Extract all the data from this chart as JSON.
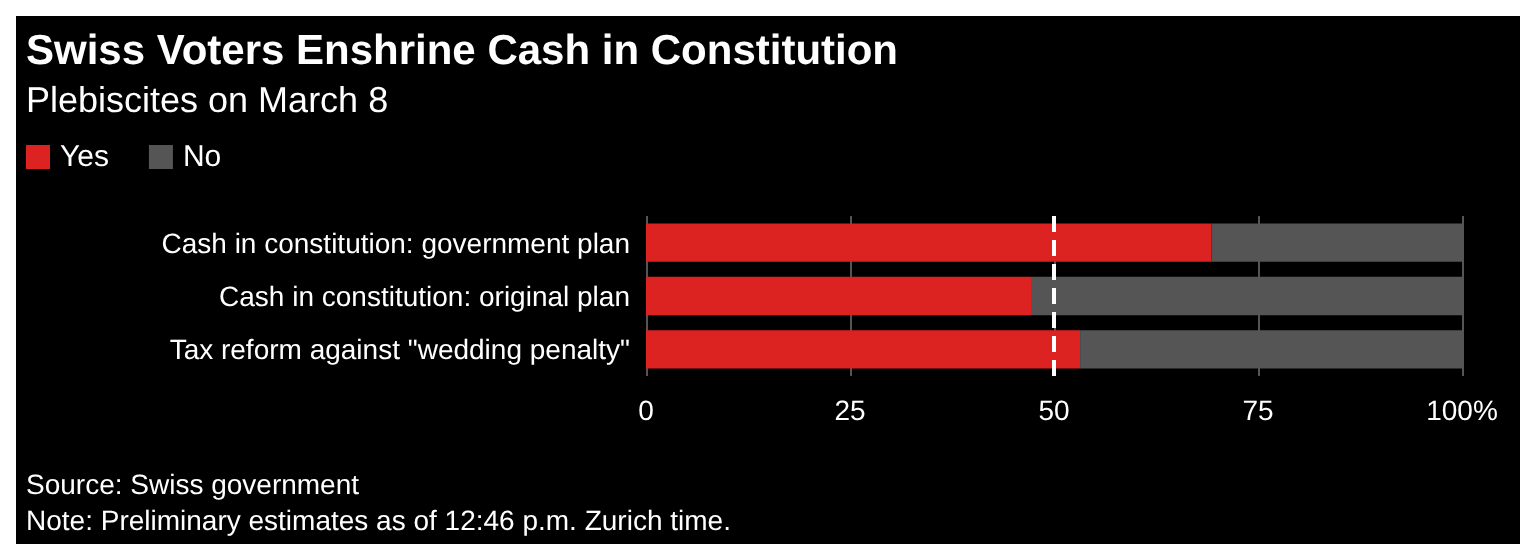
{
  "chart_data": {
    "type": "bar",
    "orientation": "horizontal",
    "stacked": true,
    "title": "Swiss Voters Enshrine Cash in Constitution",
    "subtitle": "Plebiscites on March 8",
    "categories": [
      "Cash in constitution: government plan",
      "Cash in constitution: original plan",
      "Tax reform against \"wedding penalty\""
    ],
    "series": [
      {
        "name": "Yes",
        "color": "#dd2222",
        "values": [
          69.3,
          47.3,
          53.2
        ]
      },
      {
        "name": "No",
        "color": "#555555",
        "values": [
          30.7,
          52.7,
          46.8
        ]
      }
    ],
    "xlim": [
      0,
      100
    ],
    "xticks": [
      0,
      25,
      50,
      75,
      {
        "value": 100,
        "label": "100%"
      }
    ],
    "grid": "x",
    "legend": "top left",
    "ref_lines": [
      {
        "axis": "x",
        "value": 50,
        "color": "#ffffff",
        "line_style": "dashed"
      }
    ],
    "annotations": [
      "Source: Swiss government",
      "Note: Preliminary estimates as of 12:46 p.m. Zurich time."
    ]
  }
}
